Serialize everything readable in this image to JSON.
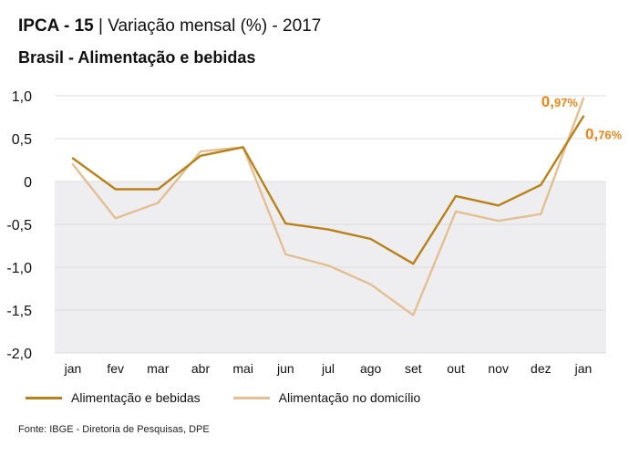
{
  "header": {
    "title_bold": "IPCA - 15",
    "title_sep": " | ",
    "title_rest": "Variação mensal (%) - 2017",
    "subtitle": "Brasil - Alimentação e bebidas"
  },
  "colors": {
    "series1": "#b8811a",
    "series2": "#e3bf94",
    "label_accent": "#e8861a",
    "negative_band": "#eeeef0",
    "grid": "#dcdcdc"
  },
  "chart_data": {
    "type": "line",
    "categories": [
      "jan",
      "fev",
      "mar",
      "abr",
      "mai",
      "jun",
      "jul",
      "ago",
      "set",
      "out",
      "nov",
      "dez",
      "jan"
    ],
    "series": [
      {
        "name": "Alimentação e bebidas",
        "values": [
          0.27,
          -0.09,
          -0.09,
          0.3,
          0.4,
          -0.49,
          -0.56,
          -0.67,
          -0.96,
          -0.17,
          -0.28,
          -0.04,
          0.76
        ]
      },
      {
        "name": "Alimentação no domicílio",
        "values": [
          0.2,
          -0.43,
          -0.25,
          0.35,
          0.4,
          -0.85,
          -0.98,
          -1.2,
          -1.56,
          -0.35,
          -0.46,
          -0.38,
          0.97
        ]
      }
    ],
    "yticks": [
      "1,0",
      "0,5",
      "0",
      "-0,5",
      "-1,0",
      "-1,5",
      "-2,0"
    ],
    "ytick_values": [
      1.0,
      0.5,
      0,
      -0.5,
      -1.0,
      -1.5,
      -2.0
    ],
    "ylim": [
      -2.0,
      1.0
    ],
    "grid": true,
    "legend_position": "bottom-left",
    "annotations": [
      {
        "series": 1,
        "index": 12,
        "prefix": "0,",
        "suffix": "97%"
      },
      {
        "series": 0,
        "index": 12,
        "prefix": "0,",
        "suffix": "76%"
      }
    ]
  },
  "source": "Fonte: IBGE - Diretoria de Pesquisas, DPE"
}
